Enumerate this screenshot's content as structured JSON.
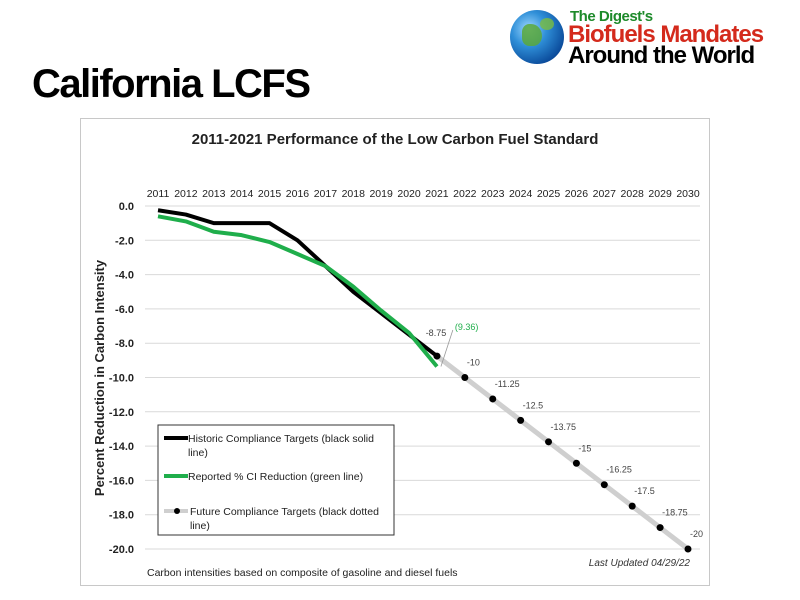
{
  "slide_title": "California LCFS",
  "logo": {
    "line1": "The Digest's",
    "line2": "Biofuels Mandates",
    "line3": "Around the World"
  },
  "chart_data": {
    "type": "line",
    "title": "2011-2021 Performance of the Low Carbon Fuel Standard",
    "ylabel": "Percent Reduction in Carbon Intensity",
    "xlabel": "",
    "x": [
      2011,
      2012,
      2013,
      2014,
      2015,
      2016,
      2017,
      2018,
      2019,
      2020,
      2021,
      2022,
      2023,
      2024,
      2025,
      2026,
      2027,
      2028,
      2029,
      2030
    ],
    "x_tick_labels": [
      "2011",
      "2012",
      "2013",
      "2014",
      "2015",
      "2016",
      "2017",
      "2018",
      "2019",
      "2020",
      "2021",
      "2022",
      "2023",
      "2024",
      "2025",
      "2026",
      "2027",
      "2028",
      "2029",
      "2030"
    ],
    "y_ticks": [
      0,
      -2,
      -4,
      -6,
      -8,
      -10,
      -12,
      -14,
      -16,
      -18,
      -20
    ],
    "y_tick_labels": [
      "0.0",
      "-2.0",
      "-4.0",
      "-6.0",
      "-8.0",
      "-10.0",
      "-12.0",
      "-14.0",
      "-16.0",
      "-18.0",
      "-20.0"
    ],
    "ylim": [
      -20,
      0
    ],
    "grid": true,
    "series": [
      {
        "name": "Historic Compliance Targets (black solid line)",
        "legend_line1": "Historic Compliance Targets (black solid",
        "legend_line2": "line)",
        "color": "#000000",
        "x": [
          2011,
          2012,
          2013,
          2014,
          2015,
          2016,
          2017,
          2018,
          2019,
          2020,
          2021
        ],
        "values": [
          -0.25,
          -0.5,
          -1.0,
          -1.0,
          -1.0,
          -2.0,
          -3.5,
          -5.0,
          -6.25,
          -7.5,
          -8.75
        ]
      },
      {
        "name": "Reported % CI Reduction (green line)",
        "legend_line1": "Reported % CI Reduction (green line)",
        "color": "#1fae4b",
        "x": [
          2011,
          2012,
          2013,
          2014,
          2015,
          2016,
          2017,
          2018,
          2019,
          2020,
          2021
        ],
        "values": [
          -0.6,
          -0.9,
          -1.5,
          -1.7,
          -2.1,
          -2.8,
          -3.5,
          -4.7,
          -6.1,
          -7.4,
          -9.36
        ]
      },
      {
        "name": "Future Compliance Targets (black dotted line)",
        "legend_line1": "Future Compliance Targets (black dotted",
        "legend_line2": "line)",
        "color": "#000000",
        "x": [
          2021,
          2022,
          2023,
          2024,
          2025,
          2026,
          2027,
          2028,
          2029,
          2030
        ],
        "values": [
          -8.75,
          -10,
          -11.25,
          -12.5,
          -13.75,
          -15,
          -16.25,
          -17.5,
          -18.75,
          -20
        ],
        "data_labels": [
          "-8.75",
          "-10",
          "-11.25",
          "-12.5",
          "-13.75",
          "-15",
          "-16.25",
          "-17.5",
          "-18.75",
          "-20"
        ]
      }
    ],
    "annotations": {
      "green_end": "(9.36)"
    },
    "legend_position": "bottom-left",
    "footnote": "Carbon intensities based on composite of gasoline and diesel fuels",
    "last_updated": "Last Updated 04/29/22"
  }
}
